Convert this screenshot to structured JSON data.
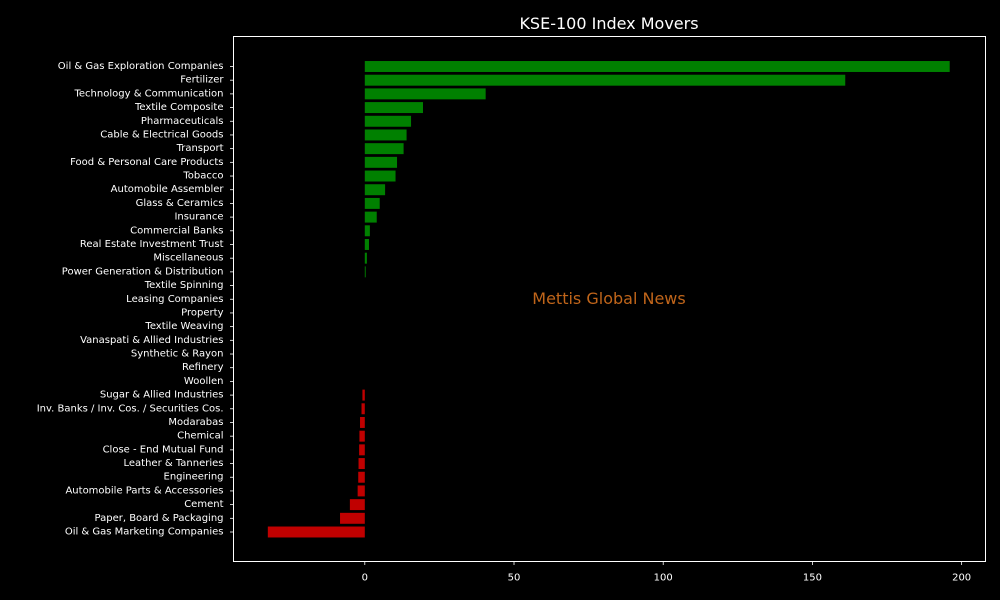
{
  "chart_data": {
    "type": "bar",
    "orientation": "horizontal",
    "title": "KSE-100 Index Movers",
    "xlabel": "",
    "ylabel": "",
    "xlim": [
      -44,
      208
    ],
    "xticks": [
      0,
      50,
      100,
      150,
      200
    ],
    "grid": false,
    "watermark": "Mettis Global News",
    "colors": {
      "positive": "#008000",
      "negative": "#c00000",
      "background": "#000000",
      "text": "#ffffff"
    },
    "categories": [
      "Oil & Gas Exploration Companies",
      "Fertilizer",
      "Technology & Communication",
      "Textile Composite",
      "Pharmaceuticals",
      "Cable & Electrical Goods",
      "Transport",
      "Food & Personal Care Products",
      "Tobacco",
      "Automobile Assembler",
      "Glass & Ceramics",
      "Insurance",
      "Commercial Banks",
      "Real Estate Investment Trust",
      "Miscellaneous",
      "Power Generation & Distribution",
      "Textile Spinning",
      "Leasing Companies",
      "Property",
      "Textile Weaving",
      "Vanaspati & Allied Industries",
      "Synthetic & Rayon",
      "Refinery",
      "Woollen",
      "Sugar & Allied Industries",
      "Inv. Banks / Inv. Cos. / Securities Cos.",
      "Modarabas",
      "Chemical",
      "Close - End Mutual Fund",
      "Leather & Tanneries",
      "Engineering",
      "Automobile Parts & Accessories",
      "Cement",
      "Paper, Board & Packaging",
      "Oil & Gas Marketing Companies"
    ],
    "values": [
      196,
      161,
      40.5,
      19.5,
      15.5,
      14,
      13,
      10.8,
      10.3,
      6.8,
      5,
      4,
      1.7,
      1.4,
      0.7,
      0.3,
      0,
      0,
      0,
      0,
      0,
      0,
      0,
      0,
      -0.8,
      -1.1,
      -1.6,
      -1.8,
      -1.9,
      -2.1,
      -2.2,
      -2.4,
      -5,
      -8.3,
      -32.5
    ]
  }
}
